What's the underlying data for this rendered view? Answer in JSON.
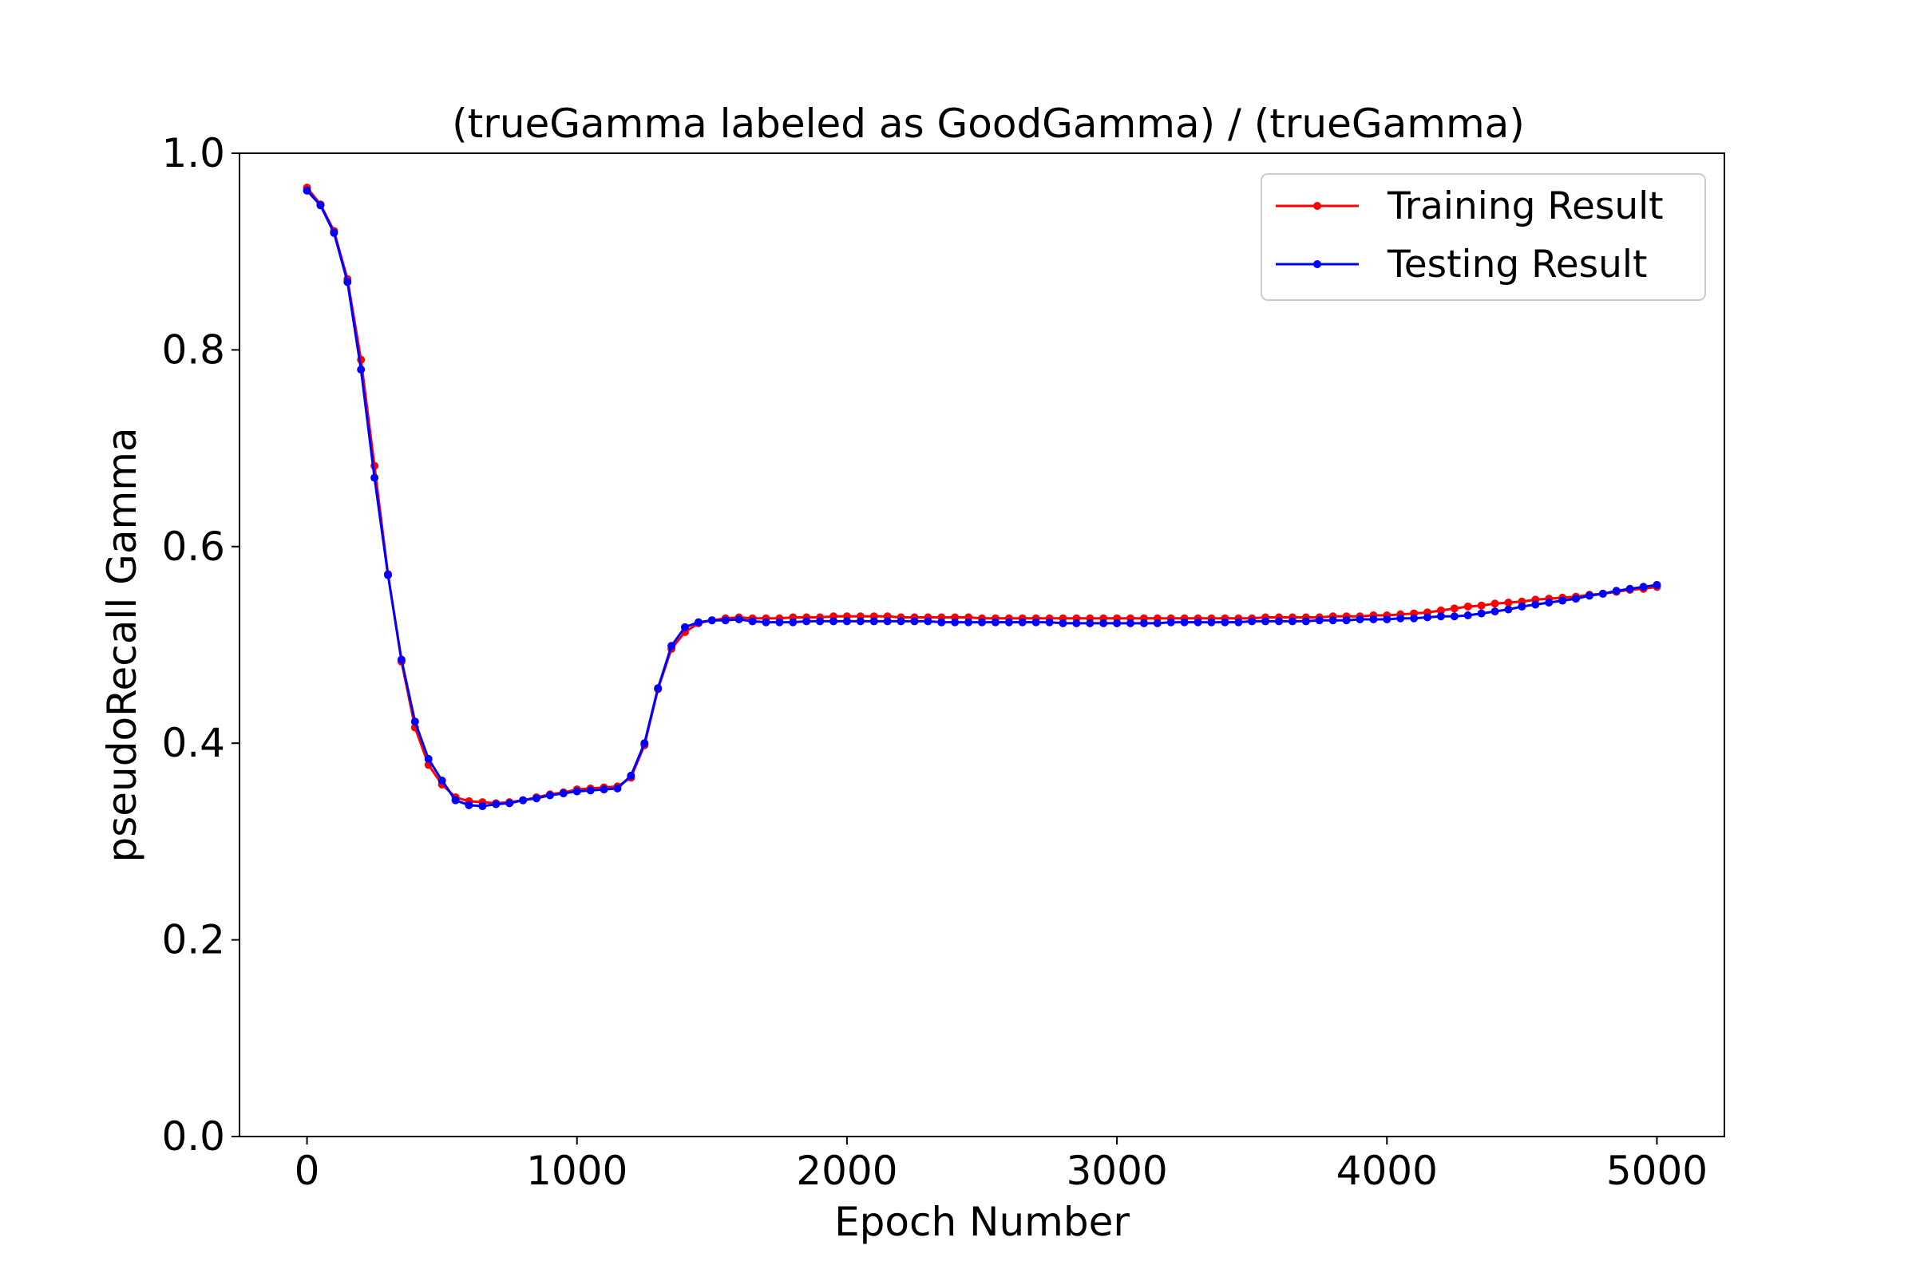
{
  "chart_data": {
    "type": "line",
    "title": "(trueGamma labeled as GoodGamma) / (trueGamma)",
    "xlabel": "Epoch Number",
    "ylabel": "pseudoRecall Gamma",
    "xlim": [
      -250,
      5250
    ],
    "ylim": [
      0.0,
      1.0
    ],
    "xticks": [
      0,
      1000,
      2000,
      3000,
      4000,
      5000
    ],
    "yticks": [
      0.0,
      0.2,
      0.4,
      0.6,
      0.8,
      1.0
    ],
    "xtick_labels": [
      "0",
      "1000",
      "2000",
      "3000",
      "4000",
      "5000"
    ],
    "ytick_labels": [
      "0.0",
      "0.2",
      "0.4",
      "0.6",
      "0.8",
      "1.0"
    ],
    "grid": false,
    "legend_position": "top-right",
    "x": [
      0,
      50,
      100,
      150,
      200,
      250,
      300,
      350,
      400,
      450,
      500,
      550,
      600,
      650,
      700,
      750,
      800,
      850,
      900,
      950,
      1000,
      1050,
      1100,
      1150,
      1200,
      1250,
      1300,
      1350,
      1400,
      1450,
      1500,
      1550,
      1600,
      1650,
      1700,
      1750,
      1800,
      1850,
      1900,
      1950,
      2000,
      2050,
      2100,
      2150,
      2200,
      2250,
      2300,
      2350,
      2400,
      2450,
      2500,
      2550,
      2600,
      2650,
      2700,
      2750,
      2800,
      2850,
      2900,
      2950,
      3000,
      3050,
      3100,
      3150,
      3200,
      3250,
      3300,
      3350,
      3400,
      3450,
      3500,
      3550,
      3600,
      3650,
      3700,
      3750,
      3800,
      3850,
      3900,
      3950,
      4000,
      4050,
      4100,
      4150,
      4200,
      4250,
      4300,
      4350,
      4400,
      4450,
      4500,
      4550,
      4600,
      4650,
      4700,
      4750,
      4800,
      4850,
      4900,
      4950,
      5000
    ],
    "series": [
      {
        "name": "Training Result",
        "color": "#ff0000",
        "values": [
          0.965,
          0.948,
          0.921,
          0.872,
          0.79,
          0.682,
          0.572,
          0.483,
          0.416,
          0.378,
          0.358,
          0.345,
          0.341,
          0.34,
          0.339,
          0.34,
          0.342,
          0.345,
          0.348,
          0.35,
          0.353,
          0.354,
          0.355,
          0.356,
          0.365,
          0.398,
          0.455,
          0.496,
          0.513,
          0.522,
          0.525,
          0.527,
          0.528,
          0.527,
          0.527,
          0.527,
          0.528,
          0.528,
          0.528,
          0.529,
          0.529,
          0.529,
          0.529,
          0.529,
          0.528,
          0.528,
          0.528,
          0.528,
          0.528,
          0.528,
          0.527,
          0.527,
          0.527,
          0.527,
          0.527,
          0.527,
          0.527,
          0.527,
          0.527,
          0.527,
          0.527,
          0.527,
          0.527,
          0.527,
          0.527,
          0.527,
          0.527,
          0.527,
          0.527,
          0.527,
          0.527,
          0.528,
          0.528,
          0.528,
          0.528,
          0.528,
          0.529,
          0.529,
          0.529,
          0.53,
          0.53,
          0.531,
          0.532,
          0.533,
          0.535,
          0.537,
          0.539,
          0.54,
          0.542,
          0.543,
          0.544,
          0.546,
          0.547,
          0.548,
          0.549,
          0.551,
          0.552,
          0.554,
          0.556,
          0.557,
          0.559
        ]
      },
      {
        "name": "Testing Result",
        "color": "#0000ff",
        "values": [
          0.962,
          0.947,
          0.919,
          0.869,
          0.78,
          0.67,
          0.571,
          0.485,
          0.422,
          0.384,
          0.362,
          0.342,
          0.337,
          0.336,
          0.338,
          0.339,
          0.342,
          0.344,
          0.347,
          0.349,
          0.351,
          0.352,
          0.353,
          0.354,
          0.367,
          0.4,
          0.456,
          0.499,
          0.518,
          0.523,
          0.525,
          0.525,
          0.526,
          0.524,
          0.523,
          0.523,
          0.523,
          0.524,
          0.524,
          0.524,
          0.524,
          0.524,
          0.524,
          0.524,
          0.524,
          0.524,
          0.524,
          0.523,
          0.523,
          0.523,
          0.523,
          0.523,
          0.523,
          0.523,
          0.523,
          0.523,
          0.522,
          0.522,
          0.522,
          0.522,
          0.522,
          0.522,
          0.522,
          0.522,
          0.523,
          0.523,
          0.523,
          0.523,
          0.523,
          0.523,
          0.524,
          0.524,
          0.524,
          0.524,
          0.524,
          0.525,
          0.525,
          0.525,
          0.526,
          0.526,
          0.526,
          0.527,
          0.527,
          0.528,
          0.529,
          0.529,
          0.53,
          0.532,
          0.534,
          0.536,
          0.539,
          0.541,
          0.543,
          0.545,
          0.547,
          0.55,
          0.552,
          0.555,
          0.557,
          0.559,
          0.561
        ]
      }
    ]
  }
}
